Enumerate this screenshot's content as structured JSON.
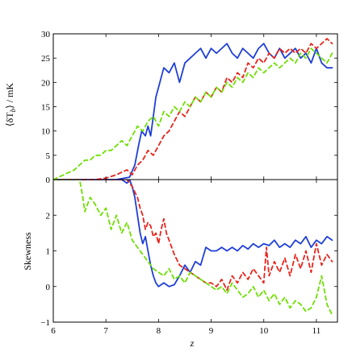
{
  "chart_data": [
    {
      "type": "line",
      "panel": "top",
      "ylabel": "⟨δT",
      "ylabel_sub": "b",
      "ylabel_unit": "⟩ / mK",
      "xlim": [
        6,
        11.4
      ],
      "ylim": [
        0,
        30
      ],
      "yticks": [
        "0",
        "5",
        "10",
        "15",
        "20",
        "25",
        "30"
      ],
      "ytick_values": [
        0,
        5,
        10,
        15,
        20,
        25,
        30
      ],
      "grid": false,
      "series": [
        {
          "color": "#1f3fd6",
          "style": "solid",
          "x": [
            6.0,
            7.2,
            7.45,
            7.55,
            7.62,
            7.68,
            7.75,
            7.8,
            7.85,
            7.9,
            7.95,
            8.0,
            8.05,
            8.1,
            8.2,
            8.3,
            8.4,
            8.5,
            8.6,
            8.7,
            8.8,
            8.9,
            9.0,
            9.1,
            9.2,
            9.3,
            9.4,
            9.5,
            9.6,
            9.7,
            9.8,
            9.9,
            10.0,
            10.1,
            10.2,
            10.3,
            10.4,
            10.5,
            10.6,
            10.7,
            10.8,
            10.9,
            11.0,
            11.1,
            11.2,
            11.3
          ],
          "y": [
            0,
            0,
            0.5,
            3,
            7,
            10,
            9,
            11,
            9,
            13,
            17,
            19,
            21,
            23,
            22,
            24,
            20,
            24,
            25,
            26,
            27,
            25,
            27,
            26,
            27,
            28,
            26,
            25,
            27,
            26,
            25,
            27,
            28,
            26,
            25,
            27,
            25,
            26,
            27,
            25,
            26,
            24,
            27,
            24,
            23,
            23
          ]
        },
        {
          "color": "#e8241c",
          "style": "dashed",
          "x": [
            6.0,
            6.8,
            7.0,
            7.2,
            7.3,
            7.4,
            7.5,
            7.6,
            7.7,
            7.8,
            7.9,
            8.0,
            8.1,
            8.2,
            8.3,
            8.4,
            8.5,
            8.6,
            8.7,
            8.8,
            8.9,
            9.0,
            9.1,
            9.2,
            9.3,
            9.4,
            9.5,
            9.6,
            9.7,
            9.8,
            9.9,
            10.0,
            10.1,
            10.2,
            10.3,
            10.4,
            10.5,
            10.6,
            10.7,
            10.8,
            10.9,
            11.0,
            11.1,
            11.2,
            11.3
          ],
          "y": [
            0,
            0,
            0.3,
            1,
            1.5,
            2,
            1,
            3,
            4,
            6,
            5,
            7,
            9,
            10,
            12,
            14,
            13,
            15,
            17,
            16,
            18,
            17,
            19,
            18,
            21,
            20,
            22,
            21,
            24,
            23,
            25,
            24,
            26,
            25,
            27,
            26,
            27,
            26,
            27,
            26,
            28,
            27,
            28,
            29,
            28
          ]
        },
        {
          "color": "#6ee000",
          "style": "dashed",
          "x": [
            6.0,
            6.2,
            6.4,
            6.5,
            6.6,
            6.7,
            6.8,
            6.9,
            7.0,
            7.1,
            7.2,
            7.3,
            7.4,
            7.5,
            7.6,
            7.7,
            7.8,
            7.9,
            8.0,
            8.1,
            8.2,
            8.3,
            8.4,
            8.5,
            8.6,
            8.7,
            8.8,
            8.9,
            9.0,
            9.1,
            9.2,
            9.3,
            9.4,
            9.5,
            9.6,
            9.7,
            9.8,
            9.9,
            10.0,
            10.1,
            10.2,
            10.3,
            10.4,
            10.5,
            10.6,
            10.7,
            10.8,
            10.9,
            11.0,
            11.1,
            11.2,
            11.3
          ],
          "y": [
            0,
            1,
            2,
            3,
            4,
            4,
            5,
            5,
            6,
            6,
            7,
            8,
            7,
            9,
            11,
            10,
            12,
            13,
            11,
            14,
            13,
            15,
            14,
            16,
            15,
            17,
            16,
            18,
            17,
            19,
            18,
            20,
            19,
            21,
            20,
            22,
            21,
            23,
            22,
            23,
            24,
            23,
            24,
            25,
            24,
            26,
            25,
            27,
            26,
            25,
            24,
            26
          ]
        }
      ]
    },
    {
      "type": "line",
      "panel": "bottom",
      "xlabel": "z",
      "ylabel": "Skewness",
      "xlim": [
        6,
        11.4
      ],
      "ylim": [
        -1,
        3
      ],
      "xticks": [
        "6",
        "7",
        "8",
        "9",
        "10",
        "11"
      ],
      "xtick_values": [
        6,
        7,
        8,
        9,
        10,
        11
      ],
      "yticks": [
        "−1",
        "0",
        "1",
        "2"
      ],
      "ytick_values": [
        -1,
        0,
        1,
        2
      ],
      "grid": false,
      "series": [
        {
          "color": "#1f3fd6",
          "style": "solid",
          "x": [
            6.0,
            7.3,
            7.4,
            7.45,
            7.5,
            7.55,
            7.6,
            7.65,
            7.7,
            7.75,
            7.8,
            7.85,
            7.9,
            7.95,
            8.0,
            8.1,
            8.2,
            8.3,
            8.4,
            8.5,
            8.6,
            8.7,
            8.8,
            8.9,
            9.0,
            9.1,
            9.2,
            9.3,
            9.4,
            9.5,
            9.6,
            9.7,
            9.8,
            9.9,
            10.0,
            10.1,
            10.2,
            10.3,
            10.4,
            10.5,
            10.6,
            10.7,
            10.8,
            10.9,
            11.0,
            11.1,
            11.2,
            11.3
          ],
          "y": [
            3,
            3,
            2.9,
            3.0,
            2.8,
            2.5,
            2.0,
            1.5,
            1.2,
            1.4,
            1.0,
            0.6,
            0.3,
            0.1,
            0.0,
            0.1,
            0.0,
            0.05,
            0.3,
            0.6,
            0.4,
            0.7,
            0.6,
            1.1,
            1.0,
            1.0,
            1.1,
            1.0,
            1.1,
            1.0,
            1.15,
            1.05,
            1.2,
            1.1,
            1.2,
            1.15,
            1.3,
            1.1,
            1.2,
            1.1,
            1.3,
            1.2,
            1.4,
            1.1,
            1.3,
            1.2,
            1.4,
            1.3
          ]
        },
        {
          "color": "#e8241c",
          "style": "dashed",
          "x": [
            6.0,
            7.4,
            7.5,
            7.6,
            7.65,
            7.7,
            7.75,
            7.8,
            7.85,
            7.9,
            7.95,
            8.0,
            8.05,
            8.1,
            8.15,
            8.2,
            8.3,
            8.4,
            8.5,
            8.6,
            8.7,
            8.8,
            8.9,
            9.0,
            9.1,
            9.2,
            9.3,
            9.4,
            9.5,
            9.6,
            9.7,
            9.8,
            9.9,
            10.0,
            10.05,
            10.1,
            10.2,
            10.3,
            10.4,
            10.5,
            10.6,
            10.7,
            10.8,
            10.9,
            11.0,
            11.1,
            11.2,
            11.3
          ],
          "y": [
            3,
            3,
            2.8,
            2.5,
            2.2,
            2.0,
            1.6,
            1.8,
            1.7,
            1.4,
            1.5,
            1.2,
            1.6,
            1.9,
            1.5,
            1.3,
            0.9,
            0.6,
            0.5,
            0.4,
            0.3,
            0.2,
            0.1,
            0.1,
            0.0,
            0.2,
            -0.1,
            0.3,
            0.1,
            0.4,
            0.2,
            0.5,
            0.3,
            0.1,
            1.1,
            0.3,
            0.7,
            0.4,
            0.8,
            0.3,
            0.9,
            0.5,
            1.0,
            0.4,
            1.2,
            0.6,
            0.9,
            0.7
          ]
        },
        {
          "color": "#6ee000",
          "style": "dashed",
          "x": [
            6.0,
            6.5,
            6.55,
            6.6,
            6.7,
            6.8,
            6.9,
            7.0,
            7.1,
            7.2,
            7.3,
            7.4,
            7.5,
            7.6,
            7.7,
            7.8,
            7.9,
            8.0,
            8.1,
            8.2,
            8.3,
            8.4,
            8.5,
            8.6,
            8.7,
            8.8,
            8.9,
            9.0,
            9.1,
            9.2,
            9.3,
            9.4,
            9.5,
            9.6,
            9.7,
            9.8,
            9.9,
            10.0,
            10.1,
            10.2,
            10.3,
            10.4,
            10.5,
            10.6,
            10.7,
            10.8,
            10.9,
            11.0,
            11.1,
            11.2,
            11.3
          ],
          "y": [
            3,
            3,
            2.6,
            2.1,
            2.5,
            2.3,
            2.0,
            2.2,
            1.6,
            2.0,
            1.5,
            1.8,
            1.3,
            1.1,
            0.9,
            0.7,
            0.5,
            0.4,
            0.3,
            0.5,
            0.2,
            0.3,
            0.1,
            0.4,
            0.3,
            0.2,
            0.1,
            0.0,
            -0.1,
            0.0,
            -0.2,
            0.1,
            -0.1,
            -0.3,
            -0.2,
            0.0,
            -0.3,
            -0.1,
            -0.4,
            -0.2,
            -0.5,
            -0.3,
            -0.6,
            -0.4,
            -0.5,
            -0.7,
            -0.6,
            -0.3,
            0.3,
            -0.5,
            -0.8
          ]
        }
      ]
    }
  ]
}
